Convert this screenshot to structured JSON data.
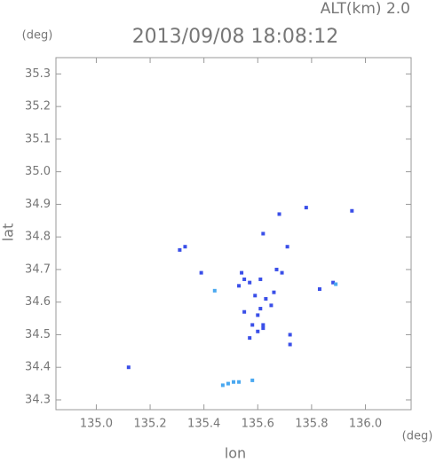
{
  "chart_data": {
    "type": "scatter",
    "title": "2013/09/08 18:08:12",
    "subtitle": "ALT(km) 2.0",
    "ylabel": "lat",
    "ylabel_unit": "(deg)",
    "xlabel": "lon",
    "xlabel_unit": "(deg)",
    "xlim": [
      134.85,
      136.17
    ],
    "ylim": [
      34.27,
      35.35
    ],
    "xticks": [
      {
        "value": 135,
        "label": "135.0"
      },
      135.2,
      135.4,
      135.6,
      135.8,
      {
        "value": 136,
        "label": "136.0"
      }
    ],
    "yticks": [
      34.3,
      34.4,
      34.5,
      34.6,
      34.7,
      34.8,
      34.9,
      {
        "value": 35,
        "label": "35.0"
      },
      35.1,
      35.2,
      35.3
    ],
    "series": [
      {
        "color": "#3a4fe8",
        "x": [
          135.12,
          135.31,
          135.33,
          135.39,
          135.54,
          135.55,
          135.53,
          135.57,
          135.61,
          135.59,
          135.61,
          135.6,
          135.62,
          135.6,
          135.57,
          135.55,
          135.62,
          135.67,
          135.69,
          135.66,
          135.71,
          135.68,
          135.72,
          135.72,
          135.78,
          135.83,
          135.88,
          135.95,
          135.63,
          135.65,
          135.62,
          135.58
        ],
        "values": [
          34.4,
          34.76,
          34.77,
          34.69,
          34.69,
          34.67,
          34.65,
          34.66,
          34.67,
          34.62,
          34.58,
          34.56,
          34.53,
          34.51,
          34.49,
          34.57,
          34.81,
          34.7,
          34.69,
          34.63,
          34.77,
          34.87,
          34.5,
          34.47,
          34.89,
          34.64,
          34.66,
          34.88,
          34.61,
          34.59,
          34.52,
          34.53
        ]
      },
      {
        "color": "#4aa8f0",
        "x": [
          135.44,
          135.47,
          135.49,
          135.51,
          135.53,
          135.58,
          135.89
        ],
        "values": [
          34.635,
          34.345,
          34.35,
          34.355,
          34.355,
          34.36,
          34.655
        ]
      }
    ]
  }
}
